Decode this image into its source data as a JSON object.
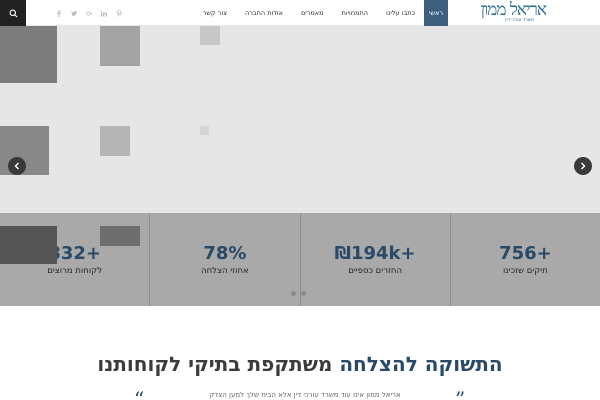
{
  "header": {
    "logo_text": "אריאל ממון",
    "logo_subtitle": "משרד עורכי דין",
    "nav": [
      {
        "label": "ראשי",
        "active": true
      },
      {
        "label": "כתבו עלינו",
        "active": false
      },
      {
        "label": "התמחויות",
        "active": false
      },
      {
        "label": "מאמרים",
        "active": false
      },
      {
        "label": "אודות החברה",
        "active": false
      },
      {
        "label": "צור קשר",
        "active": false
      }
    ],
    "socials": [
      "pinterest-icon",
      "google-plus-icon",
      "linkedin-icon",
      "twitter-icon",
      "facebook-icon"
    ],
    "brand_color": "#2f6c8e",
    "active_nav_color": "#3d5f7d"
  },
  "stats": [
    {
      "value": "756+",
      "label": "תיקים שזכינו"
    },
    {
      "value": "₪194k+",
      "label": "החזרים כספיים"
    },
    {
      "value": "78%",
      "label": "אחוזי הצלחה"
    },
    {
      "value": "832+",
      "label": "לקוחות מרוצים"
    }
  ],
  "slider": {
    "prev_icon": "chevron-left-icon",
    "next_icon": "chevron-right-icon",
    "dot_count": 2
  },
  "content": {
    "headline_highlight": "התשוקה להצלחה",
    "headline_rest": " משתקפת בתיקי לקוחותנו",
    "quote_text": "אריאל ממון אינו עוד משרד עורכי דין אלא הבית שלך למען הצדק"
  }
}
